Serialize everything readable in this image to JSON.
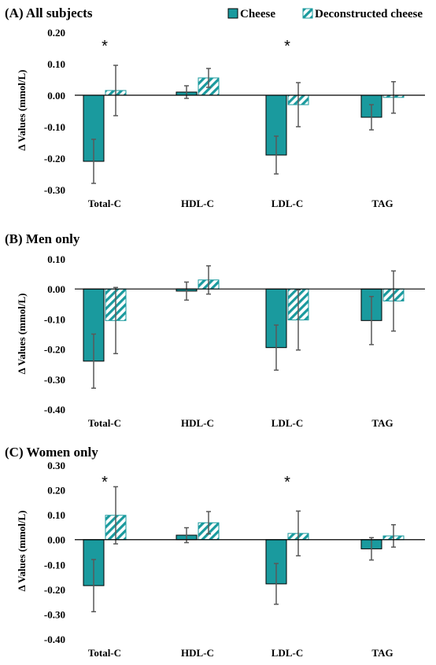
{
  "legend": {
    "items": [
      {
        "label": "Cheese",
        "style": "solid"
      },
      {
        "label": "Deconstructed cheese",
        "style": "hatched"
      }
    ]
  },
  "colors": {
    "cheese": "#1a9a9e",
    "hatch": "#1a9a9e",
    "error_bar": "#595959",
    "axis": "#000000"
  },
  "chart_data": [
    {
      "type": "bar",
      "title": "(A) All subjects",
      "ylabel": "Δ Values (mmol/L)",
      "xlabel": "",
      "categories": [
        "Total-C",
        "HDL-C",
        "LDL-C",
        "TAG"
      ],
      "ylim": [
        -0.3,
        0.2
      ],
      "yticks": [
        "0.20",
        "0.10",
        "0.00",
        "-0.10",
        "-0.20",
        "-0.30"
      ],
      "series": [
        {
          "name": "Cheese",
          "values": [
            -0.21,
            0.01,
            -0.19,
            -0.07
          ],
          "errors": [
            0.07,
            0.02,
            0.06,
            0.04
          ]
        },
        {
          "name": "Deconstructed cheese",
          "values": [
            0.015,
            0.055,
            -0.03,
            -0.007
          ],
          "errors": [
            0.08,
            0.03,
            0.07,
            0.05
          ]
        }
      ],
      "annotations": [
        {
          "category": "Total-C",
          "text": "*"
        },
        {
          "category": "LDL-C",
          "text": "*"
        }
      ]
    },
    {
      "type": "bar",
      "title": "(B) Men only",
      "ylabel": "Δ Values (mmol/L)",
      "xlabel": "",
      "categories": [
        "Total-C",
        "HDL-C",
        "LDL-C",
        "TAG"
      ],
      "ylim": [
        -0.4,
        0.1
      ],
      "yticks": [
        "0.10",
        "0.00",
        "-0.10",
        "-0.20",
        "-0.30",
        "-0.40"
      ],
      "series": [
        {
          "name": "Cheese",
          "values": [
            -0.24,
            -0.007,
            -0.195,
            -0.105
          ],
          "errors": [
            0.09,
            0.03,
            0.075,
            0.08
          ]
        },
        {
          "name": "Deconstructed cheese",
          "values": [
            -0.105,
            0.03,
            -0.103,
            -0.04
          ],
          "errors": [
            0.11,
            0.047,
            0.1,
            0.1
          ]
        }
      ],
      "annotations": []
    },
    {
      "type": "bar",
      "title": "(C) Women only",
      "ylabel": "Δ Values (mmol/L)",
      "xlabel": "",
      "categories": [
        "Total-C",
        "HDL-C",
        "LDL-C",
        "TAG"
      ],
      "ylim": [
        -0.4,
        0.3
      ],
      "yticks": [
        "0.30",
        "0.20",
        "0.10",
        "0.00",
        "-0.10",
        "-0.20",
        "-0.30",
        "-0.40"
      ],
      "series": [
        {
          "name": "Cheese",
          "values": [
            -0.185,
            0.018,
            -0.178,
            -0.037
          ],
          "errors": [
            0.105,
            0.03,
            0.082,
            0.045
          ]
        },
        {
          "name": "Deconstructed cheese",
          "values": [
            0.098,
            0.068,
            0.025,
            0.015
          ],
          "errors": [
            0.115,
            0.045,
            0.09,
            0.045
          ]
        }
      ],
      "annotations": [
        {
          "category": "Total-C",
          "text": "*"
        },
        {
          "category": "LDL-C",
          "text": "*"
        }
      ]
    }
  ]
}
